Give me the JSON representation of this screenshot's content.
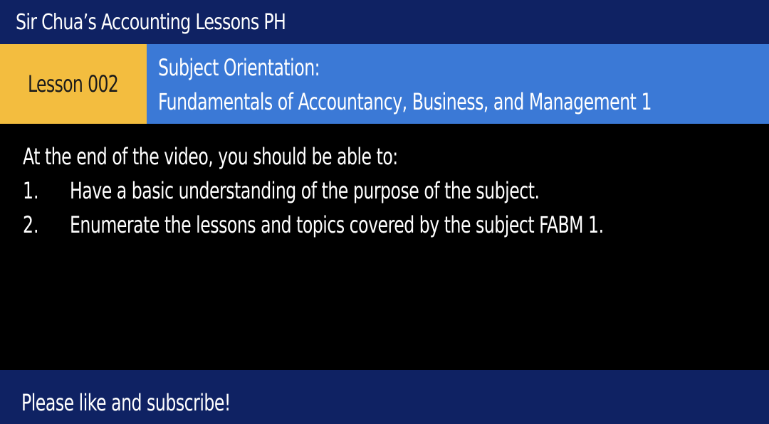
{
  "header": {
    "channel_title": "Sir Chua’s Accounting Lessons PH",
    "bar_color": "#0f2263"
  },
  "lesson": {
    "label": "Lesson 002",
    "badge_color": "#f3bd3f",
    "subject_line1": "Subject Orientation:",
    "subject_line2": "Fundamentals of Accountancy, Business, and Management 1",
    "band_color": "#3b79d6"
  },
  "objectives": {
    "intro": "At the end of the video, you should be able to:",
    "items": [
      {
        "number": "1.",
        "text": "Have a basic understanding of the purpose of the subject."
      },
      {
        "number": "2.",
        "text": "Enumerate the lessons and topics covered by the subject FABM 1."
      }
    ]
  },
  "footer": {
    "text": "Please like and subscribe!"
  }
}
